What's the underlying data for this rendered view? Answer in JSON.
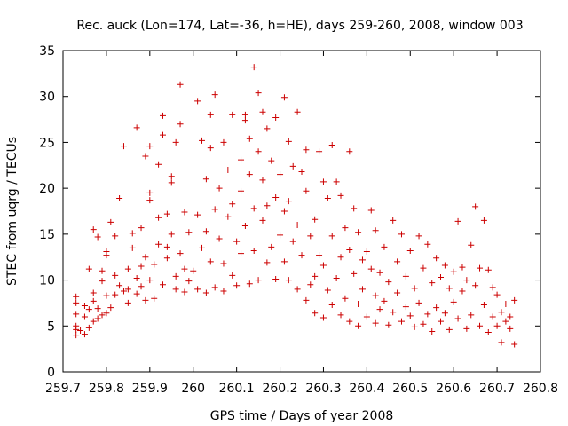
{
  "chart_data": {
    "type": "scatter",
    "title": "Rec. auck (Lon=174, Lat=-36, h=HE), days 259-260, 2008, window 003",
    "xlabel": "GPS time / Days of year 2008",
    "ylabel": "STEC from uqrg / TECUs",
    "xlim": [
      259.7,
      260.8
    ],
    "ylim": [
      0,
      35
    ],
    "x_ticks": [
      "259.7",
      "259.8",
      "259.9",
      "260",
      "260.1",
      "260.2",
      "260.3",
      "260.4",
      "260.5",
      "260.6",
      "260.7",
      "260.8"
    ],
    "y_ticks": [
      "0",
      "5",
      "10",
      "15",
      "20",
      "25",
      "30",
      "35"
    ],
    "marker": "plus",
    "color": "#cc0000",
    "grid": false,
    "points": [
      [
        259.73,
        4.0
      ],
      [
        259.73,
        4.6
      ],
      [
        259.73,
        5.0
      ],
      [
        259.73,
        6.3
      ],
      [
        259.73,
        7.5
      ],
      [
        259.73,
        8.2
      ],
      [
        259.74,
        4.5
      ],
      [
        259.75,
        4.1
      ],
      [
        259.75,
        6.0
      ],
      [
        259.75,
        7.2
      ],
      [
        259.76,
        11.2
      ],
      [
        259.76,
        4.8
      ],
      [
        259.76,
        6.8
      ],
      [
        259.77,
        5.5
      ],
      [
        259.77,
        8.6
      ],
      [
        259.77,
        7.7
      ],
      [
        259.77,
        15.5
      ],
      [
        259.78,
        5.8
      ],
      [
        259.78,
        6.9
      ],
      [
        259.78,
        14.7
      ],
      [
        259.79,
        6.2
      ],
      [
        259.79,
        11.0
      ],
      [
        259.79,
        9.9
      ],
      [
        259.8,
        8.3
      ],
      [
        259.8,
        12.7
      ],
      [
        259.8,
        13.1
      ],
      [
        259.8,
        6.4
      ],
      [
        259.81,
        16.3
      ],
      [
        259.81,
        7.0
      ],
      [
        259.82,
        10.5
      ],
      [
        259.82,
        8.4
      ],
      [
        259.82,
        14.8
      ],
      [
        259.83,
        18.9
      ],
      [
        259.83,
        9.4
      ],
      [
        259.84,
        8.8
      ],
      [
        259.84,
        24.6
      ],
      [
        259.85,
        7.5
      ],
      [
        259.85,
        11.2
      ],
      [
        259.85,
        9.0
      ],
      [
        259.86,
        13.5
      ],
      [
        259.86,
        15.1
      ],
      [
        259.87,
        26.6
      ],
      [
        259.87,
        10.2
      ],
      [
        259.87,
        8.5
      ],
      [
        259.88,
        11.5
      ],
      [
        259.88,
        9.3
      ],
      [
        259.88,
        15.7
      ],
      [
        259.89,
        23.5
      ],
      [
        259.89,
        12.5
      ],
      [
        259.89,
        7.8
      ],
      [
        259.9,
        19.5
      ],
      [
        259.9,
        24.6
      ],
      [
        259.9,
        18.7
      ],
      [
        259.9,
        10.0
      ],
      [
        259.91,
        8.0
      ],
      [
        259.91,
        11.7
      ],
      [
        259.92,
        22.6
      ],
      [
        259.92,
        16.8
      ],
      [
        259.92,
        13.9
      ],
      [
        259.93,
        25.8
      ],
      [
        259.93,
        27.9
      ],
      [
        259.93,
        9.5
      ],
      [
        259.94,
        12.4
      ],
      [
        259.94,
        17.2
      ],
      [
        259.94,
        13.6
      ],
      [
        259.95,
        20.6
      ],
      [
        259.95,
        21.3
      ],
      [
        259.95,
        15.0
      ],
      [
        259.96,
        25.0
      ],
      [
        259.96,
        9.0
      ],
      [
        259.96,
        10.4
      ],
      [
        259.97,
        31.3
      ],
      [
        259.97,
        27.0
      ],
      [
        259.97,
        12.9
      ],
      [
        259.98,
        17.4
      ],
      [
        259.98,
        11.2
      ],
      [
        259.98,
        8.7
      ],
      [
        259.99,
        15.2
      ],
      [
        259.99,
        9.9
      ],
      [
        260.0,
        11.0
      ],
      [
        260.01,
        29.5
      ],
      [
        260.01,
        17.1
      ],
      [
        260.01,
        9.0
      ],
      [
        260.02,
        25.2
      ],
      [
        260.02,
        13.5
      ],
      [
        260.03,
        21.0
      ],
      [
        260.03,
        15.3
      ],
      [
        260.03,
        8.6
      ],
      [
        260.04,
        28.0
      ],
      [
        260.04,
        24.4
      ],
      [
        260.04,
        12.0
      ],
      [
        260.05,
        30.2
      ],
      [
        260.05,
        17.7
      ],
      [
        260.05,
        9.2
      ],
      [
        260.06,
        20.0
      ],
      [
        260.06,
        14.5
      ],
      [
        260.07,
        25.0
      ],
      [
        260.07,
        11.8
      ],
      [
        260.07,
        8.8
      ],
      [
        260.08,
        22.0
      ],
      [
        260.08,
        16.9
      ],
      [
        260.09,
        28.0
      ],
      [
        260.09,
        18.3
      ],
      [
        260.09,
        10.5
      ],
      [
        260.1,
        14.2
      ],
      [
        260.1,
        9.4
      ],
      [
        260.11,
        23.1
      ],
      [
        260.11,
        19.7
      ],
      [
        260.11,
        12.9
      ],
      [
        260.12,
        27.4
      ],
      [
        260.12,
        28.0
      ],
      [
        260.12,
        15.9
      ],
      [
        260.13,
        25.4
      ],
      [
        260.13,
        21.5
      ],
      [
        260.13,
        9.6
      ],
      [
        260.14,
        33.2
      ],
      [
        260.14,
        17.8
      ],
      [
        260.14,
        13.2
      ],
      [
        260.15,
        30.4
      ],
      [
        260.15,
        24.0
      ],
      [
        260.15,
        10.0
      ],
      [
        260.16,
        28.3
      ],
      [
        260.16,
        20.9
      ],
      [
        260.16,
        16.5
      ],
      [
        260.17,
        26.5
      ],
      [
        260.17,
        18.1
      ],
      [
        260.17,
        11.9
      ],
      [
        260.18,
        23.0
      ],
      [
        260.18,
        13.6
      ],
      [
        260.19,
        27.7
      ],
      [
        260.19,
        19.0
      ],
      [
        260.19,
        10.1
      ],
      [
        260.2,
        14.9
      ],
      [
        260.2,
        21.5
      ],
      [
        260.21,
        29.9
      ],
      [
        260.21,
        17.5
      ],
      [
        260.21,
        12.0
      ],
      [
        260.22,
        25.1
      ],
      [
        260.22,
        18.6
      ],
      [
        260.22,
        10.0
      ],
      [
        260.23,
        22.4
      ],
      [
        260.23,
        14.2
      ],
      [
        260.24,
        28.3
      ],
      [
        260.24,
        16.0
      ],
      [
        260.24,
        9.0
      ],
      [
        260.25,
        21.8
      ],
      [
        260.25,
        12.7
      ],
      [
        260.26,
        24.2
      ],
      [
        260.26,
        19.7
      ],
      [
        260.26,
        7.8
      ],
      [
        260.27,
        14.8
      ],
      [
        260.27,
        9.5
      ],
      [
        260.28,
        16.6
      ],
      [
        260.28,
        10.4
      ],
      [
        260.28,
        6.4
      ],
      [
        260.29,
        24.0
      ],
      [
        260.29,
        12.7
      ],
      [
        260.3,
        20.7
      ],
      [
        260.3,
        11.6
      ],
      [
        260.3,
        5.9
      ],
      [
        260.31,
        18.9
      ],
      [
        260.31,
        8.9
      ],
      [
        260.32,
        24.7
      ],
      [
        260.32,
        14.8
      ],
      [
        260.32,
        7.3
      ],
      [
        260.33,
        20.7
      ],
      [
        260.33,
        10.2
      ],
      [
        260.34,
        19.2
      ],
      [
        260.34,
        12.5
      ],
      [
        260.34,
        6.2
      ],
      [
        260.35,
        15.7
      ],
      [
        260.35,
        8.0
      ],
      [
        260.36,
        24.0
      ],
      [
        260.36,
        13.3
      ],
      [
        260.36,
        5.5
      ],
      [
        260.37,
        17.8
      ],
      [
        260.37,
        10.7
      ],
      [
        260.38,
        15.2
      ],
      [
        260.38,
        7.4
      ],
      [
        260.38,
        5.0
      ],
      [
        260.39,
        12.2
      ],
      [
        260.39,
        9.0
      ],
      [
        260.4,
        13.1
      ],
      [
        260.4,
        6.0
      ],
      [
        260.41,
        17.6
      ],
      [
        260.41,
        11.2
      ],
      [
        260.42,
        15.4
      ],
      [
        260.42,
        8.3
      ],
      [
        260.42,
        5.3
      ],
      [
        260.43,
        10.8
      ],
      [
        260.43,
        6.8
      ],
      [
        260.44,
        13.6
      ],
      [
        260.44,
        7.7
      ],
      [
        260.45,
        9.8
      ],
      [
        260.45,
        5.1
      ],
      [
        260.46,
        16.5
      ],
      [
        260.46,
        6.5
      ],
      [
        260.47,
        12.0
      ],
      [
        260.47,
        8.6
      ],
      [
        260.48,
        15.0
      ],
      [
        260.48,
        5.5
      ],
      [
        260.49,
        10.4
      ],
      [
        260.49,
        7.1
      ],
      [
        260.5,
        13.2
      ],
      [
        260.5,
        6.1
      ],
      [
        260.51,
        9.1
      ],
      [
        260.51,
        4.9
      ],
      [
        260.52,
        14.8
      ],
      [
        260.52,
        7.5
      ],
      [
        260.53,
        11.3
      ],
      [
        260.53,
        5.2
      ],
      [
        260.54,
        13.9
      ],
      [
        260.54,
        6.3
      ],
      [
        260.55,
        9.7
      ],
      [
        260.55,
        4.4
      ],
      [
        260.56,
        12.4
      ],
      [
        260.56,
        7.0
      ],
      [
        260.57,
        10.3
      ],
      [
        260.57,
        5.5
      ],
      [
        260.58,
        11.6
      ],
      [
        260.58,
        6.4
      ],
      [
        260.59,
        9.1
      ],
      [
        260.59,
        4.6
      ],
      [
        260.6,
        10.9
      ],
      [
        260.6,
        7.6
      ],
      [
        260.61,
        16.4
      ],
      [
        260.61,
        5.8
      ],
      [
        260.62,
        11.4
      ],
      [
        260.62,
        8.8
      ],
      [
        260.63,
        10.0
      ],
      [
        260.63,
        4.7
      ],
      [
        260.64,
        13.8
      ],
      [
        260.64,
        6.2
      ],
      [
        260.65,
        18.0
      ],
      [
        260.65,
        9.4
      ],
      [
        260.66,
        11.3
      ],
      [
        260.66,
        5.0
      ],
      [
        260.67,
        16.5
      ],
      [
        260.67,
        7.3
      ],
      [
        260.68,
        11.1
      ],
      [
        260.68,
        4.3
      ],
      [
        260.69,
        9.2
      ],
      [
        260.69,
        6.0
      ],
      [
        260.7,
        8.4
      ],
      [
        260.7,
        5.0
      ],
      [
        260.71,
        6.5
      ],
      [
        260.71,
        3.2
      ],
      [
        260.72,
        7.4
      ],
      [
        260.72,
        5.5
      ],
      [
        260.73,
        6.0
      ],
      [
        260.73,
        4.7
      ],
      [
        260.74,
        3.0
      ],
      [
        260.74,
        7.8
      ]
    ]
  }
}
